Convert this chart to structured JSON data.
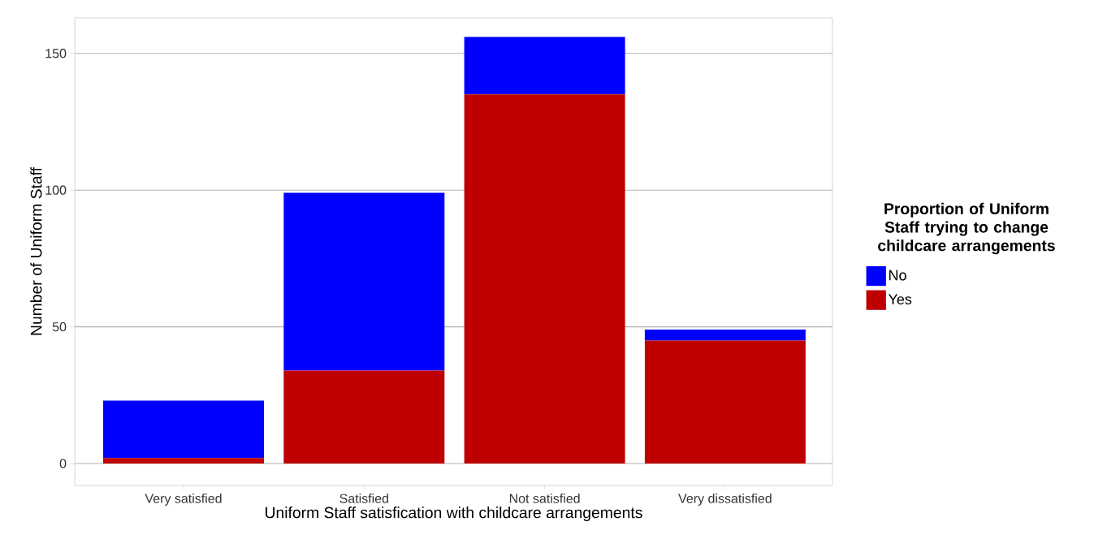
{
  "chart_data": {
    "type": "bar",
    "stacked": true,
    "xlabel": "Uniform Staff satisfication with childcare arrangements",
    "ylabel": "Number of Uniform Staff",
    "legend_title": "Proportion of Uniform Staff trying to change childcare arrangements",
    "categories": [
      "Very satisfied",
      "Satisfied",
      "Not satisfied",
      "Very dissatisfied"
    ],
    "series": [
      {
        "name": "Yes",
        "color": "#bf0000",
        "values": [
          2,
          34,
          135,
          45
        ]
      },
      {
        "name": "No",
        "color": "#0000ff",
        "values": [
          21,
          65,
          21,
          4
        ]
      }
    ],
    "ylim": [
      -8,
      163
    ],
    "yticks": [
      0,
      50,
      100,
      150
    ],
    "grid": "y",
    "legend": "right"
  }
}
